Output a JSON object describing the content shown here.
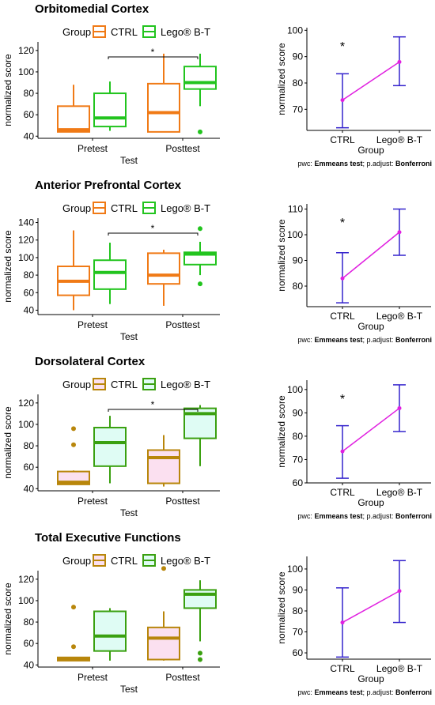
{
  "colors": {
    "ctrl_orange": "#f07a16",
    "lego_green": "#22c41e",
    "ctrl_gold": "#b8860b",
    "lego_green_dark": "#3aa010",
    "pink_fill": "#fbe0f0",
    "cyan_fill": "#dffcf4",
    "error_bar": "#3322cc",
    "mean_line": "#e020e0"
  },
  "chart_data": [
    {
      "type": "boxplot",
      "title": "Orbitomedial Cortex",
      "legend": {
        "title": "Group",
        "entries": [
          "CTRL",
          "Lego® B-T"
        ],
        "placement": "top"
      },
      "xlabel": "Test",
      "ylabel": "normalized score",
      "categories": [
        "Pretest",
        "Posttest"
      ],
      "ylim": [
        38,
        128
      ],
      "yticks": [
        "40",
        "60",
        "80",
        "100",
        "120"
      ],
      "style": "bright",
      "series": [
        {
          "name": "CTRL",
          "boxes": [
            {
              "min": 44,
              "q1": 44,
              "median": 46,
              "q3": 68,
              "max": 88,
              "outliers": []
            },
            {
              "min": 44,
              "q1": 44,
              "median": 62,
              "q3": 89,
              "max": 117,
              "outliers": []
            }
          ]
        },
        {
          "name": "Lego® B-T",
          "boxes": [
            {
              "min": 45,
              "q1": 49,
              "median": 57,
              "q3": 80,
              "max": 91,
              "outliers": []
            },
            {
              "min": 68,
              "q1": 84,
              "median": 90,
              "q3": 105,
              "max": 117,
              "outliers": [
                44
              ]
            }
          ]
        }
      ],
      "significance": "*",
      "means_panel": {
        "type": "line",
        "categories": [
          "CTRL",
          "Lego® B-T"
        ],
        "xlabel": "Group",
        "ylabel": "normalized score",
        "ylim": [
          62,
          101
        ],
        "yticks": [
          "70",
          "80",
          "90",
          "100"
        ],
        "means": [
          73.5,
          88
        ],
        "ci_low": [
          63,
          79
        ],
        "ci_high": [
          83.5,
          97.5
        ],
        "star_over": 0,
        "star": "*",
        "footnote": [
          "pwc: ",
          "Emmeans test",
          "; p.adjust: ",
          "Bonferroni"
        ]
      }
    },
    {
      "type": "boxplot",
      "title": "Anterior Prefrontal Cortex",
      "legend": {
        "title": "Group",
        "entries": [
          "CTRL",
          "Lego® B-T"
        ],
        "placement": "top"
      },
      "xlabel": "Test",
      "ylabel": "normalized score",
      "categories": [
        "Pretest",
        "Posttest"
      ],
      "ylim": [
        35,
        145
      ],
      "yticks": [
        "40",
        "60",
        "80",
        "100",
        "120",
        "140"
      ],
      "style": "bright",
      "series": [
        {
          "name": "CTRL",
          "boxes": [
            {
              "min": 40,
              "q1": 57,
              "median": 73,
              "q3": 90,
              "max": 131,
              "outliers": []
            },
            {
              "min": 45,
              "q1": 70,
              "median": 80,
              "q3": 105,
              "max": 109,
              "outliers": []
            }
          ]
        },
        {
          "name": "Lego® B-T",
          "boxes": [
            {
              "min": 47,
              "q1": 64,
              "median": 83,
              "q3": 97,
              "max": 117,
              "outliers": []
            },
            {
              "min": 80,
              "q1": 92,
              "median": 104,
              "q3": 106,
              "max": 118,
              "outliers": [
                133,
                70
              ]
            }
          ]
        }
      ],
      "significance": "*",
      "means_panel": {
        "type": "line",
        "categories": [
          "CTRL",
          "Lego® B-T"
        ],
        "xlabel": "Group",
        "ylabel": "normalized score",
        "ylim": [
          72,
          112
        ],
        "yticks": [
          "80",
          "90",
          "100",
          "110"
        ],
        "means": [
          83,
          101
        ],
        "ci_low": [
          73.5,
          92
        ],
        "ci_high": [
          93,
          110
        ],
        "star_over": 0,
        "star": "*",
        "footnote": [
          "pwc: ",
          "Emmeans test",
          "; p.adjust: ",
          "Bonferroni"
        ]
      }
    },
    {
      "type": "boxplot",
      "title": "Dorsolateral Cortex",
      "legend": {
        "title": "Group",
        "entries": [
          "CTRL",
          "Lego® B-T"
        ],
        "placement": "top"
      },
      "xlabel": "Test",
      "ylabel": "normalized score",
      "categories": [
        "Pretest",
        "Posttest"
      ],
      "ylim": [
        38,
        128
      ],
      "yticks": [
        "40",
        "60",
        "80",
        "100",
        "120"
      ],
      "style": "muted",
      "series": [
        {
          "name": "CTRL",
          "boxes": [
            {
              "min": 44,
              "q1": 44,
              "median": 46,
              "q3": 56,
              "max": 57,
              "outliers": [
                96,
                81
              ]
            },
            {
              "min": 42,
              "q1": 45,
              "median": 69,
              "q3": 76,
              "max": 90,
              "outliers": []
            }
          ]
        },
        {
          "name": "Lego® B-T",
          "boxes": [
            {
              "min": 45,
              "q1": 61,
              "median": 83,
              "q3": 97,
              "max": 108,
              "outliers": []
            },
            {
              "min": 61,
              "q1": 87,
              "median": 110,
              "q3": 115,
              "max": 118,
              "outliers": []
            }
          ]
        }
      ],
      "significance": "*",
      "means_panel": {
        "type": "line",
        "categories": [
          "CTRL",
          "Lego® B-T"
        ],
        "xlabel": "Group",
        "ylabel": "normalized score",
        "ylim": [
          60,
          104
        ],
        "yticks": [
          "60",
          "70",
          "80",
          "90",
          "100"
        ],
        "means": [
          73.5,
          92
        ],
        "ci_low": [
          62,
          82
        ],
        "ci_high": [
          84.5,
          102
        ],
        "star_over": 0,
        "star": "*",
        "footnote": [
          "pwc: ",
          "Emmeans test",
          "; p.adjust: ",
          "Bonferroni"
        ]
      }
    },
    {
      "type": "boxplot",
      "title": "Total Executive Functions",
      "legend": {
        "title": "Group",
        "entries": [
          "CTRL",
          "Lego® B-T"
        ],
        "placement": "top"
      },
      "xlabel": "Test",
      "ylabel": "normalized score",
      "categories": [
        "Pretest",
        "Posttest"
      ],
      "ylim": [
        38,
        128
      ],
      "yticks": [
        "40",
        "60",
        "80",
        "100",
        "120"
      ],
      "style": "muted",
      "series": [
        {
          "name": "CTRL",
          "boxes": [
            {
              "min": 44,
              "q1": 44,
              "median": 45,
              "q3": 47,
              "max": 47,
              "outliers": [
                94,
                57
              ]
            },
            {
              "min": 44,
              "q1": 45,
              "median": 65,
              "q3": 75,
              "max": 90,
              "outliers": [
                130
              ]
            }
          ]
        },
        {
          "name": "Lego® B-T",
          "boxes": [
            {
              "min": 44,
              "q1": 53,
              "median": 67,
              "q3": 90,
              "max": 93,
              "outliers": []
            },
            {
              "min": 62,
              "q1": 93,
              "median": 106,
              "q3": 110,
              "max": 119,
              "outliers": [
                51,
                45
              ]
            }
          ]
        }
      ],
      "significance": "",
      "means_panel": {
        "type": "line",
        "categories": [
          "CTRL",
          "Lego® B-T"
        ],
        "xlabel": "Group",
        "ylabel": "normalized score",
        "ylim": [
          57,
          106
        ],
        "yticks": [
          "60",
          "70",
          "80",
          "90",
          "100"
        ],
        "means": [
          74.5,
          89.5
        ],
        "ci_low": [
          58,
          74.5
        ],
        "ci_high": [
          91,
          104
        ],
        "star_over": -1,
        "star": "",
        "footnote": [
          "pwc: ",
          "Emmeans test",
          "; p.adjust: ",
          "Bonferroni"
        ]
      }
    }
  ]
}
